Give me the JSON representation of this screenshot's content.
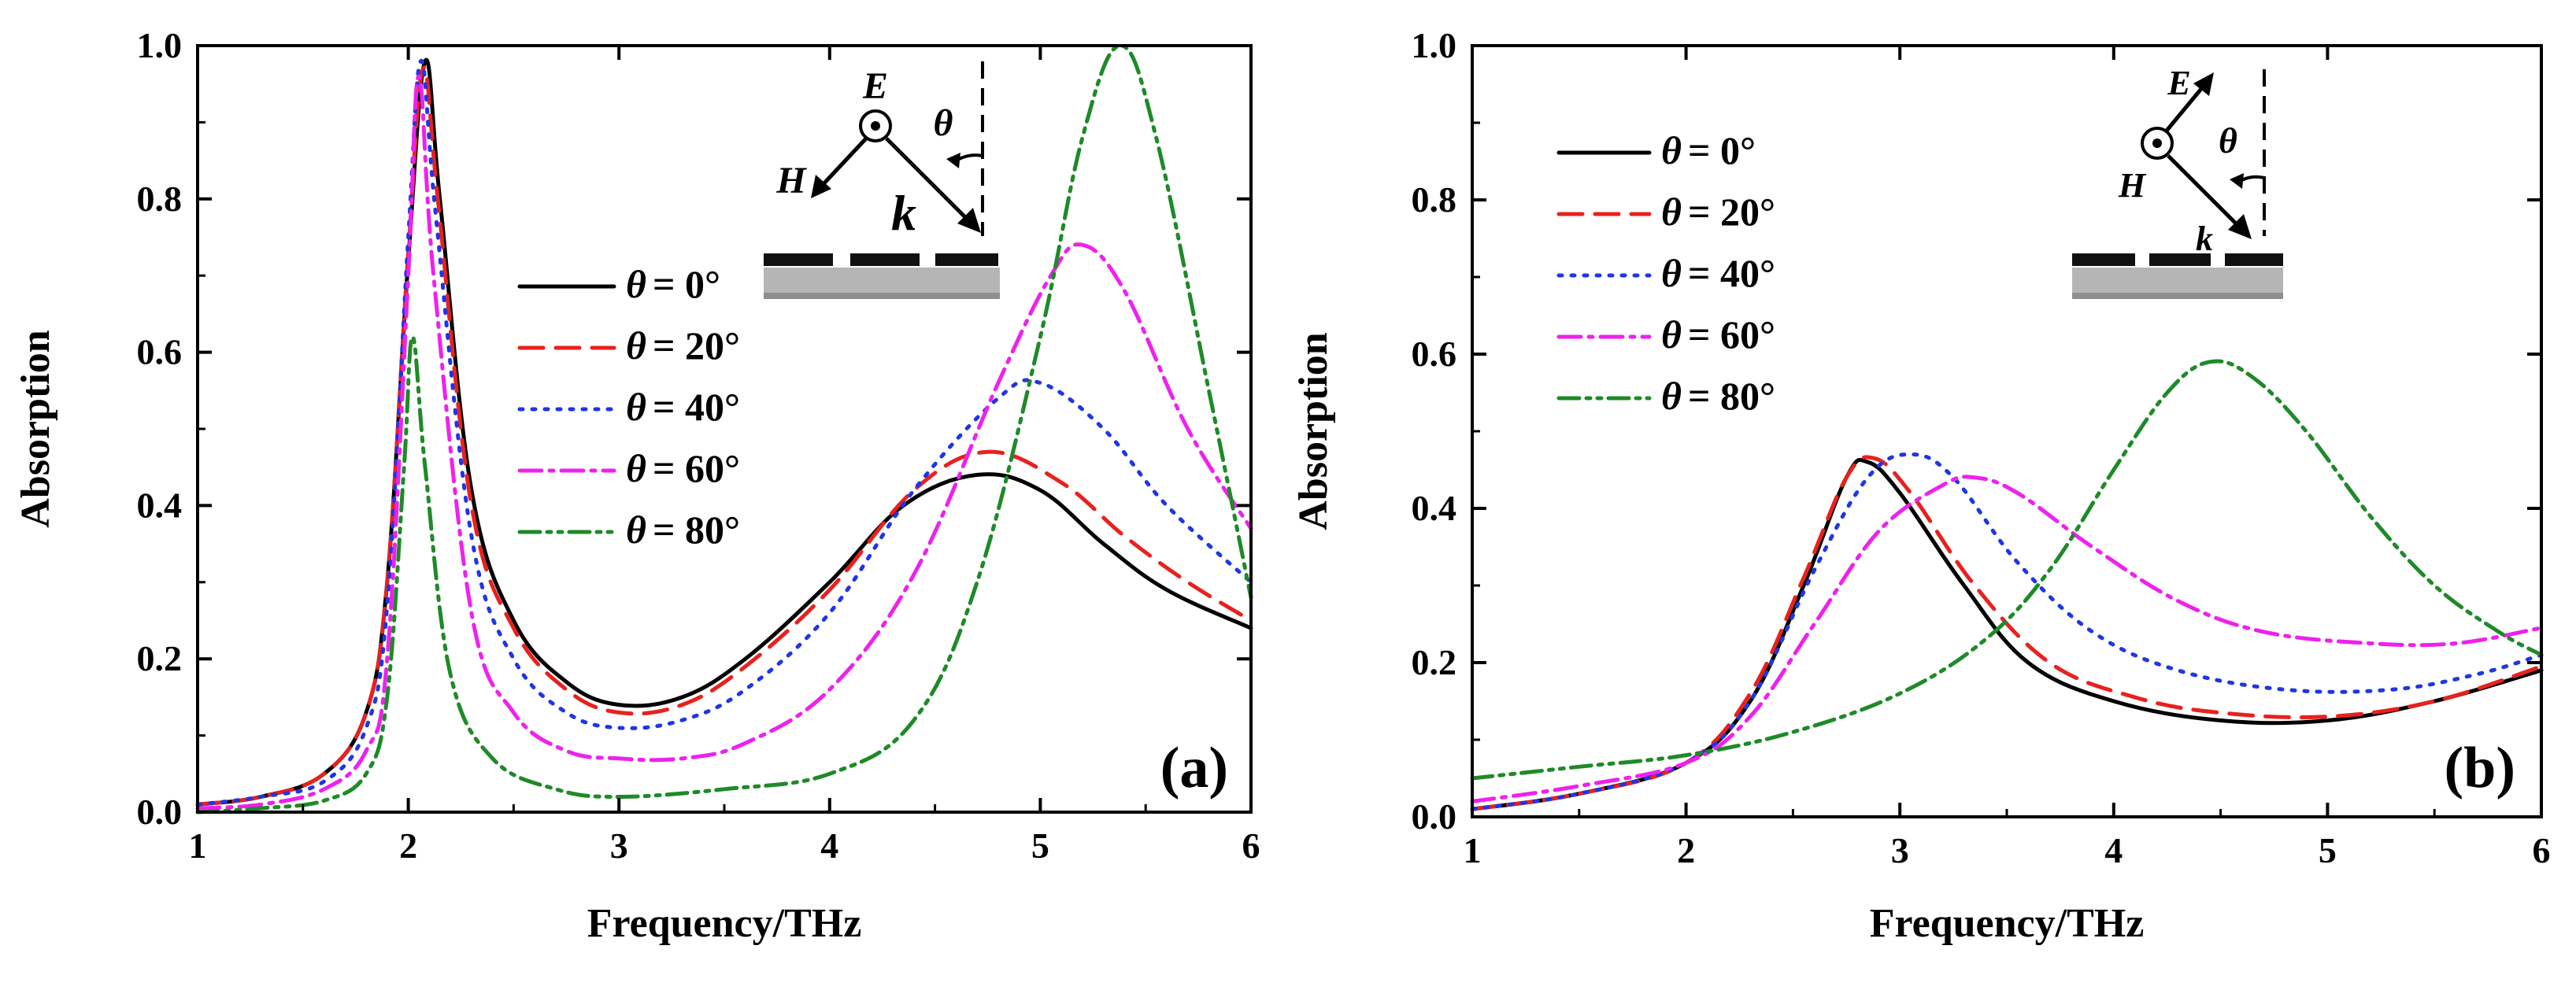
{
  "chart_data": [
    {
      "type": "line",
      "panel_label": "(a)",
      "xlabel": "Frequency/THz",
      "ylabel": "Absorption",
      "xlim": [
        1,
        6
      ],
      "ylim": [
        0,
        1
      ],
      "xticks": [
        1,
        2,
        3,
        4,
        5,
        6
      ],
      "xtick_labels": [
        "1",
        "2",
        "3",
        "4",
        "5",
        "6"
      ],
      "yticks": [
        0,
        0.2,
        0.4,
        0.6,
        0.8,
        1.0
      ],
      "ytick_labels": [
        "0.0",
        "0.2",
        "0.4",
        "0.6",
        "0.8",
        "1.0"
      ],
      "legend_location": "center-right",
      "inset": {
        "e_label": "E",
        "h_label": "H",
        "k_label": "k",
        "theta_label": "θ"
      },
      "series": [
        {
          "name": "θ = 0°",
          "theta": "θ",
          "eq": "= 0°",
          "color": "#000000",
          "dash": "solid",
          "points": [
            [
              1,
              0.01
            ],
            [
              1.3,
              0.02
            ],
            [
              1.6,
              0.05
            ],
            [
              1.8,
              0.13
            ],
            [
              1.9,
              0.3
            ],
            [
              2.0,
              0.72
            ],
            [
              2.08,
              0.98
            ],
            [
              2.15,
              0.8
            ],
            [
              2.3,
              0.42
            ],
            [
              2.5,
              0.25
            ],
            [
              2.75,
              0.17
            ],
            [
              3.0,
              0.14
            ],
            [
              3.3,
              0.15
            ],
            [
              3.6,
              0.2
            ],
            [
              4.0,
              0.3
            ],
            [
              4.35,
              0.4
            ],
            [
              4.7,
              0.44
            ],
            [
              5.0,
              0.42
            ],
            [
              5.3,
              0.35
            ],
            [
              5.6,
              0.29
            ],
            [
              6.0,
              0.24
            ]
          ]
        },
        {
          "name": "θ = 20°",
          "theta": "θ",
          "eq": "= 20°",
          "color": "#e8211e",
          "dash": "dash",
          "points": [
            [
              1,
              0.01
            ],
            [
              1.3,
              0.02
            ],
            [
              1.6,
              0.05
            ],
            [
              1.8,
              0.13
            ],
            [
              1.9,
              0.3
            ],
            [
              2.0,
              0.73
            ],
            [
              2.07,
              0.97
            ],
            [
              2.14,
              0.8
            ],
            [
              2.3,
              0.4
            ],
            [
              2.5,
              0.24
            ],
            [
              2.75,
              0.16
            ],
            [
              3.0,
              0.13
            ],
            [
              3.3,
              0.14
            ],
            [
              3.6,
              0.19
            ],
            [
              4.0,
              0.29
            ],
            [
              4.4,
              0.42
            ],
            [
              4.75,
              0.47
            ],
            [
              5.1,
              0.43
            ],
            [
              5.4,
              0.36
            ],
            [
              5.7,
              0.3
            ],
            [
              6.0,
              0.25
            ]
          ]
        },
        {
          "name": "θ = 40°",
          "theta": "θ",
          "eq": "= 40°",
          "color": "#1f35e6",
          "dash": "dot",
          "points": [
            [
              1,
              0.01
            ],
            [
              1.3,
              0.02
            ],
            [
              1.6,
              0.04
            ],
            [
              1.8,
              0.11
            ],
            [
              1.9,
              0.27
            ],
            [
              2.0,
              0.75
            ],
            [
              2.06,
              0.98
            ],
            [
              2.13,
              0.78
            ],
            [
              2.3,
              0.36
            ],
            [
              2.5,
              0.2
            ],
            [
              2.75,
              0.13
            ],
            [
              3.0,
              0.11
            ],
            [
              3.3,
              0.12
            ],
            [
              3.6,
              0.16
            ],
            [
              4.0,
              0.26
            ],
            [
              4.4,
              0.42
            ],
            [
              4.8,
              0.54
            ],
            [
              5.0,
              0.56
            ],
            [
              5.3,
              0.5
            ],
            [
              5.6,
              0.4
            ],
            [
              6.0,
              0.3
            ]
          ]
        },
        {
          "name": "θ = 60°",
          "theta": "θ",
          "eq": "= 60°",
          "color": "#ee21ee",
          "dash": "dashdot",
          "points": [
            [
              1,
              0.005
            ],
            [
              1.3,
              0.01
            ],
            [
              1.6,
              0.03
            ],
            [
              1.8,
              0.08
            ],
            [
              1.9,
              0.2
            ],
            [
              2.0,
              0.7
            ],
            [
              2.05,
              0.96
            ],
            [
              2.12,
              0.7
            ],
            [
              2.3,
              0.26
            ],
            [
              2.5,
              0.13
            ],
            [
              2.75,
              0.08
            ],
            [
              3.0,
              0.07
            ],
            [
              3.3,
              0.07
            ],
            [
              3.6,
              0.09
            ],
            [
              4.0,
              0.16
            ],
            [
              4.4,
              0.31
            ],
            [
              4.8,
              0.56
            ],
            [
              5.05,
              0.7
            ],
            [
              5.2,
              0.74
            ],
            [
              5.4,
              0.68
            ],
            [
              5.7,
              0.5
            ],
            [
              6.0,
              0.37
            ]
          ]
        },
        {
          "name": "θ = 80°",
          "theta": "θ",
          "eq": "= 80°",
          "color": "#1e8a28",
          "dash": "dashdotdot",
          "points": [
            [
              1,
              0.0
            ],
            [
              1.3,
              0.005
            ],
            [
              1.6,
              0.015
            ],
            [
              1.8,
              0.05
            ],
            [
              1.9,
              0.15
            ],
            [
              1.98,
              0.45
            ],
            [
              2.02,
              0.62
            ],
            [
              2.08,
              0.45
            ],
            [
              2.2,
              0.18
            ],
            [
              2.4,
              0.07
            ],
            [
              2.7,
              0.03
            ],
            [
              3.0,
              0.02
            ],
            [
              3.5,
              0.03
            ],
            [
              4.0,
              0.05
            ],
            [
              4.4,
              0.12
            ],
            [
              4.7,
              0.3
            ],
            [
              5.0,
              0.62
            ],
            [
              5.2,
              0.88
            ],
            [
              5.38,
              1.0
            ],
            [
              5.55,
              0.88
            ],
            [
              5.8,
              0.55
            ],
            [
              6.0,
              0.28
            ]
          ]
        }
      ]
    },
    {
      "type": "line",
      "panel_label": "(b)",
      "xlabel": "Frequency/THz",
      "ylabel": "Absorption",
      "xlim": [
        1,
        6
      ],
      "ylim": [
        0,
        1
      ],
      "xticks": [
        1,
        2,
        3,
        4,
        5,
        6
      ],
      "xtick_labels": [
        "1",
        "2",
        "3",
        "4",
        "5",
        "6"
      ],
      "yticks": [
        0,
        0.2,
        0.4,
        0.6,
        0.8,
        1.0
      ],
      "ytick_labels": [
        "0.0",
        "0.2",
        "0.4",
        "0.6",
        "0.8",
        "1.0"
      ],
      "legend_location": "top-left",
      "inset": {
        "e_label": "E",
        "h_label": "H",
        "k_label": "k",
        "theta_label": "θ"
      },
      "series": [
        {
          "name": "θ = 0°",
          "theta": "θ",
          "eq": "= 0°",
          "color": "#000000",
          "dash": "solid",
          "points": [
            [
              1,
              0.01
            ],
            [
              1.5,
              0.03
            ],
            [
              2.0,
              0.07
            ],
            [
              2.3,
              0.15
            ],
            [
              2.55,
              0.3
            ],
            [
              2.75,
              0.44
            ],
            [
              2.85,
              0.46
            ],
            [
              3.0,
              0.42
            ],
            [
              3.3,
              0.3
            ],
            [
              3.6,
              0.2
            ],
            [
              4.0,
              0.15
            ],
            [
              4.5,
              0.125
            ],
            [
              5.0,
              0.125
            ],
            [
              5.5,
              0.15
            ],
            [
              6.0,
              0.19
            ]
          ]
        },
        {
          "name": "θ = 20°",
          "theta": "θ",
          "eq": "= 20°",
          "color": "#e8211e",
          "dash": "dash",
          "points": [
            [
              1,
              0.01
            ],
            [
              1.5,
              0.03
            ],
            [
              2.0,
              0.07
            ],
            [
              2.3,
              0.16
            ],
            [
              2.55,
              0.31
            ],
            [
              2.75,
              0.44
            ],
            [
              2.88,
              0.465
            ],
            [
              3.05,
              0.42
            ],
            [
              3.35,
              0.3
            ],
            [
              3.7,
              0.2
            ],
            [
              4.1,
              0.155
            ],
            [
              4.5,
              0.135
            ],
            [
              5.0,
              0.13
            ],
            [
              5.5,
              0.15
            ],
            [
              6.0,
              0.195
            ]
          ]
        },
        {
          "name": "θ = 40°",
          "theta": "θ",
          "eq": "= 40°",
          "color": "#1f35e6",
          "dash": "dot",
          "points": [
            [
              1,
              0.01
            ],
            [
              1.5,
              0.03
            ],
            [
              2.0,
              0.07
            ],
            [
              2.3,
              0.15
            ],
            [
              2.6,
              0.32
            ],
            [
              2.85,
              0.44
            ],
            [
              3.05,
              0.47
            ],
            [
              3.25,
              0.44
            ],
            [
              3.55,
              0.33
            ],
            [
              3.9,
              0.24
            ],
            [
              4.3,
              0.19
            ],
            [
              4.8,
              0.165
            ],
            [
              5.3,
              0.165
            ],
            [
              5.7,
              0.185
            ],
            [
              6.0,
              0.21
            ]
          ]
        },
        {
          "name": "θ = 60°",
          "theta": "θ",
          "eq": "= 60°",
          "color": "#ee21ee",
          "dash": "dashdot",
          "points": [
            [
              1,
              0.02
            ],
            [
              1.5,
              0.04
            ],
            [
              2.0,
              0.07
            ],
            [
              2.3,
              0.13
            ],
            [
              2.6,
              0.25
            ],
            [
              2.9,
              0.37
            ],
            [
              3.2,
              0.43
            ],
            [
              3.35,
              0.44
            ],
            [
              3.55,
              0.42
            ],
            [
              3.9,
              0.35
            ],
            [
              4.3,
              0.28
            ],
            [
              4.7,
              0.24
            ],
            [
              5.2,
              0.225
            ],
            [
              5.6,
              0.225
            ],
            [
              6.0,
              0.245
            ]
          ]
        },
        {
          "name": "θ = 80°",
          "theta": "θ",
          "eq": "= 80°",
          "color": "#1e8a28",
          "dash": "dashdotdot",
          "points": [
            [
              1,
              0.05
            ],
            [
              1.5,
              0.065
            ],
            [
              2.0,
              0.08
            ],
            [
              2.5,
              0.11
            ],
            [
              3.0,
              0.16
            ],
            [
              3.4,
              0.23
            ],
            [
              3.7,
              0.32
            ],
            [
              4.0,
              0.45
            ],
            [
              4.25,
              0.55
            ],
            [
              4.45,
              0.59
            ],
            [
              4.65,
              0.57
            ],
            [
              4.9,
              0.5
            ],
            [
              5.2,
              0.39
            ],
            [
              5.5,
              0.3
            ],
            [
              5.8,
              0.24
            ],
            [
              6.0,
              0.21
            ]
          ]
        }
      ]
    }
  ]
}
